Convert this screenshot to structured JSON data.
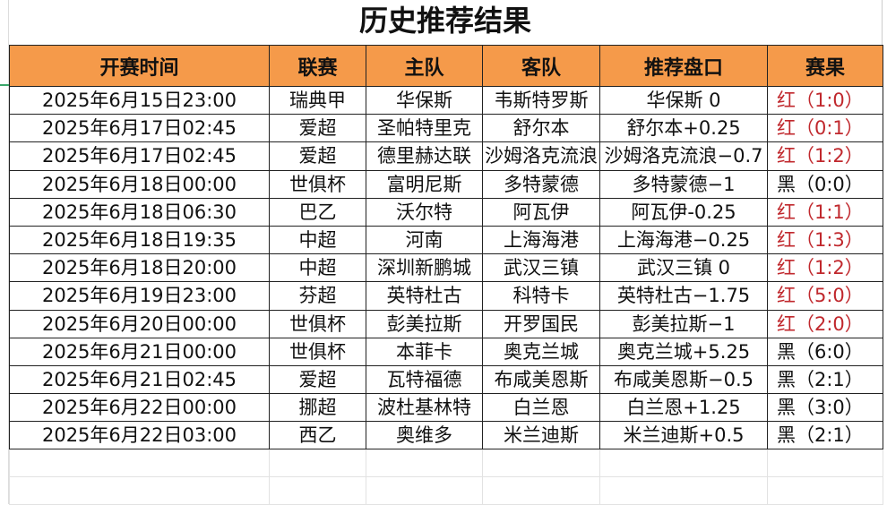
{
  "title": "历史推荐结果",
  "headers": [
    "开赛时间",
    "联赛",
    "主队",
    "客队",
    "推荐盘口",
    "赛果"
  ],
  "colors": {
    "header_bg": "#f59a4a",
    "red_result": "#c0282d"
  },
  "rows": [
    [
      "2025年6月15日23:00",
      "瑞典甲",
      "华保斯",
      "韦斯特罗斯",
      "华保斯 0",
      "红（1:0）",
      "red"
    ],
    [
      "2025年6月17日02:45",
      "爱超",
      "圣帕特里克",
      "舒尔本",
      "舒尔本+0.25",
      "红（0:1）",
      "red"
    ],
    [
      "2025年6月17日02:45",
      "爱超",
      "德里赫达联",
      "沙姆洛克流浪",
      "沙姆洛克流浪−0.7",
      "红（1:2）",
      "red"
    ],
    [
      "2025年6月18日00:00",
      "世俱杯",
      "富明尼斯",
      "多特蒙德",
      "多特蒙德−1",
      "黑（0:0）",
      "black"
    ],
    [
      "2025年6月18日06:30",
      "巴乙",
      "沃尔特",
      "阿瓦伊",
      "阿瓦伊-0.25",
      "红（1:1）",
      "red"
    ],
    [
      "2025年6月18日19:35",
      "中超",
      "河南",
      "上海海港",
      "上海海港−0.25",
      "红（1:3）",
      "red"
    ],
    [
      "2025年6月18日20:00",
      "中超",
      "深圳新鹏城",
      "武汉三镇",
      "武汉三镇 0",
      "红（1:2）",
      "red"
    ],
    [
      "2025年6月19日23:00",
      "芬超",
      "英特杜古",
      "科特卡",
      "英特杜古−1.75",
      "红（5:0）",
      "red"
    ],
    [
      "2025年6月20日00:00",
      "世俱杯",
      "彭美拉斯",
      "开罗国民",
      "彭美拉斯−1",
      "红（2:0）",
      "red"
    ],
    [
      "2025年6月21日00:00",
      "世俱杯",
      "本菲卡",
      "奥克兰城",
      "奥克兰城+5.25",
      "黑（6:0）",
      "black"
    ],
    [
      "2025年6月21日02:45",
      "爱超",
      "瓦特福德",
      "布咸美恩斯",
      "布咸美恩斯−0.5",
      "黑（2:1）",
      "black"
    ],
    [
      "2025年6月22日00:00",
      "挪超",
      "波杜基林特",
      "白兰恩",
      "白兰恩+1.25",
      "黑（3:0）",
      "black"
    ],
    [
      "2025年6月22日03:00",
      "西乙",
      "奥维多",
      "米兰迪斯",
      "米兰迪斯+0.5",
      "黑（2:1）",
      "black"
    ]
  ]
}
